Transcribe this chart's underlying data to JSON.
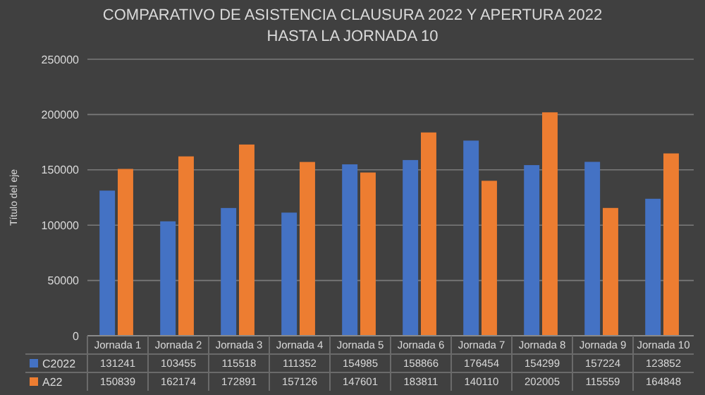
{
  "chart_data": {
    "type": "bar",
    "title": "COMPARATIVO DE ASISTENCIA CLAUSURA 2022 Y APERTURA 2022",
    "subtitle": "HASTA LA JORNADA 10",
    "ylabel": "Título del eje",
    "categories": [
      "Jornada 1",
      "Jornada 2",
      "Jornada 3",
      "Jornada 4",
      "Jornada 5",
      "Jornada 6",
      "Jornada 7",
      "Jornada 8",
      "Jornada 9",
      "Jornada 10"
    ],
    "series": [
      {
        "name": "C2022",
        "color": "#4472c4",
        "values": [
          131241,
          103455,
          115518,
          111352,
          154985,
          158866,
          176454,
          154299,
          157224,
          123852
        ]
      },
      {
        "name": "A22",
        "color": "#ed7d31",
        "values": [
          150839,
          162174,
          172891,
          157126,
          147601,
          183811,
          140110,
          202005,
          115559,
          164848
        ]
      }
    ],
    "ylim": [
      0,
      250000
    ],
    "yticks": [
      0,
      50000,
      100000,
      150000,
      200000,
      250000
    ],
    "grid": "y",
    "data_labels": true,
    "legend": "bottom"
  }
}
